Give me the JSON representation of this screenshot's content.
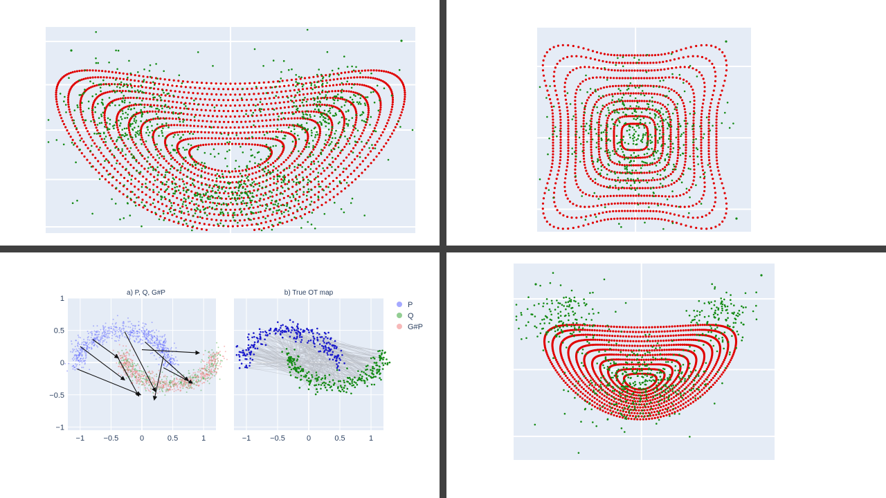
{
  "colors": {
    "plot_bg": "#e5ecf6",
    "grid": "#ffffff",
    "divider": "#404040",
    "red": "#e00000",
    "green": "#138a13",
    "P": "#5b63ff",
    "Q": "#3aa53a",
    "GP": "#f08080",
    "blue": "#1a1acc",
    "arrow": "#111111",
    "lines": "#b8bcc4"
  },
  "chart_data": [
    {
      "panel": "top-left",
      "type": "scatter",
      "series": [
        {
          "color": "red",
          "shape": "nested level curves of a bowl-shaped (double-well) potential"
        },
        {
          "color": "green",
          "shape": "cloud concentrated along the lower part of the bowl and its two upper arms"
        }
      ],
      "grid": true
    },
    {
      "panel": "top-right",
      "type": "scatter",
      "series": [
        {
          "color": "red",
          "shape": "concentric rounded-square curves with curled corners"
        },
        {
          "color": "green",
          "shape": "cloud concentrated around the central square"
        }
      ],
      "grid": true
    },
    {
      "panel": "bottom-right",
      "type": "scatter",
      "series": [
        {
          "color": "red",
          "shape": "nested U-shaped level curves"
        },
        {
          "color": "green",
          "shape": "cloud concentrated in the lower center and both upper corners"
        }
      ],
      "grid": true
    },
    {
      "panel": "bottom-left-a",
      "type": "scatter",
      "title": "a) P, Q, G#P",
      "xlim": [
        -1.2,
        1.2
      ],
      "ylim": [
        -1.05,
        1.0
      ],
      "xticks": [
        -1,
        -0.5,
        0,
        0.5,
        1
      ],
      "xtick_labels": [
        "−1",
        "−0.5",
        "0",
        "0.5",
        "1"
      ],
      "yticks": [
        1,
        0.5,
        0,
        -0.5,
        -1
      ],
      "ytick_labels": [
        "1",
        "0.5",
        "0",
        "−0.5",
        "−1"
      ],
      "arrows": [
        [
          [
            -0.8,
            0.36
          ],
          [
            -0.38,
            0.07
          ]
        ],
        [
          [
            -1.0,
            0.25
          ],
          [
            -0.28,
            -0.27
          ]
        ],
        [
          [
            -1.05,
            -0.1
          ],
          [
            -0.02,
            -0.5
          ]
        ],
        [
          [
            -0.28,
            0.48
          ],
          [
            0.22,
            -0.45
          ]
        ],
        [
          [
            -0.42,
            0.13
          ],
          [
            -0.05,
            -0.52
          ]
        ],
        [
          [
            0.35,
            0.1
          ],
          [
            0.2,
            -0.58
          ]
        ],
        [
          [
            0.35,
            -0.08
          ],
          [
            0.82,
            -0.32
          ]
        ],
        [
          [
            0.0,
            0.2
          ],
          [
            0.93,
            0.15
          ]
        ],
        [
          [
            0.05,
            0.32
          ],
          [
            0.75,
            -0.28
          ]
        ]
      ],
      "grid": true
    },
    {
      "panel": "bottom-left-b",
      "type": "scatter",
      "title": "b) True OT map",
      "xlim": [
        -1.2,
        1.2
      ],
      "ylim": [
        -1.05,
        1.0
      ],
      "xticks": [
        -1,
        -0.5,
        0,
        0.5,
        1
      ],
      "xtick_labels": [
        "−1",
        "−0.5",
        "0",
        "0.5",
        "1"
      ],
      "grid": true
    }
  ],
  "legend": {
    "placement": "right",
    "entries": [
      {
        "label": "P",
        "color": "P"
      },
      {
        "label": "Q",
        "color": "Q"
      },
      {
        "label": "G#P",
        "color": "GP"
      }
    ]
  }
}
